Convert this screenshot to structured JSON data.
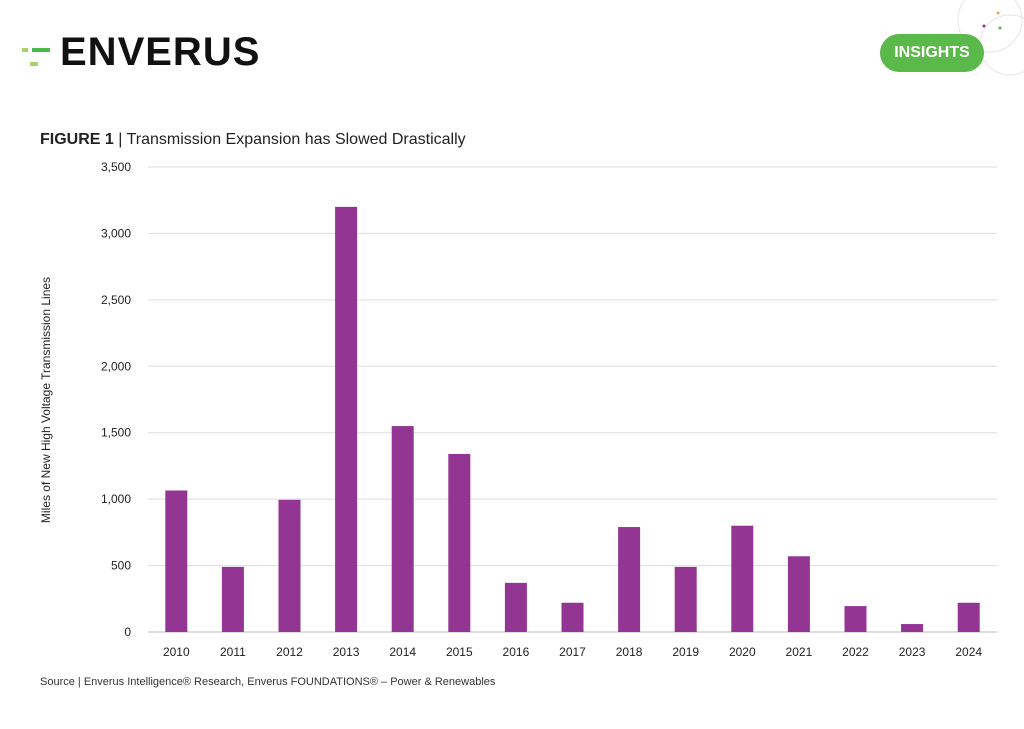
{
  "brand": {
    "logo_text": "ENVERUS",
    "badge": "INSIGHTS",
    "accent": "#5bb84a"
  },
  "figure": {
    "label": "FIGURE 1",
    "separator": " | ",
    "title": "Transmission Expansion has Slowed Drastically"
  },
  "source": "Source | Enverus Intelligence® Research, Enverus FOUNDATIONS® – Power & Renewables",
  "chart_data": {
    "type": "bar",
    "title": "Transmission Expansion has Slowed Drastically",
    "xlabel": "",
    "ylabel": "Miles of New High Voltage Transmission Lines",
    "ylim": [
      0,
      3500
    ],
    "yticks": [
      0,
      500,
      1000,
      1500,
      2000,
      2500,
      3000,
      3500
    ],
    "ytick_labels": [
      "0",
      "500",
      "1,000",
      "1,500",
      "2,000",
      "2,500",
      "3,000",
      "3,500"
    ],
    "grid": true,
    "bar_color": "#933592",
    "categories": [
      "2010",
      "2011",
      "2012",
      "2013",
      "2014",
      "2015",
      "2016",
      "2017",
      "2018",
      "2019",
      "2020",
      "2021",
      "2022",
      "2023",
      "2024"
    ],
    "values": [
      1065,
      490,
      995,
      3200,
      1550,
      1340,
      370,
      220,
      790,
      490,
      800,
      570,
      195,
      60,
      220
    ]
  }
}
